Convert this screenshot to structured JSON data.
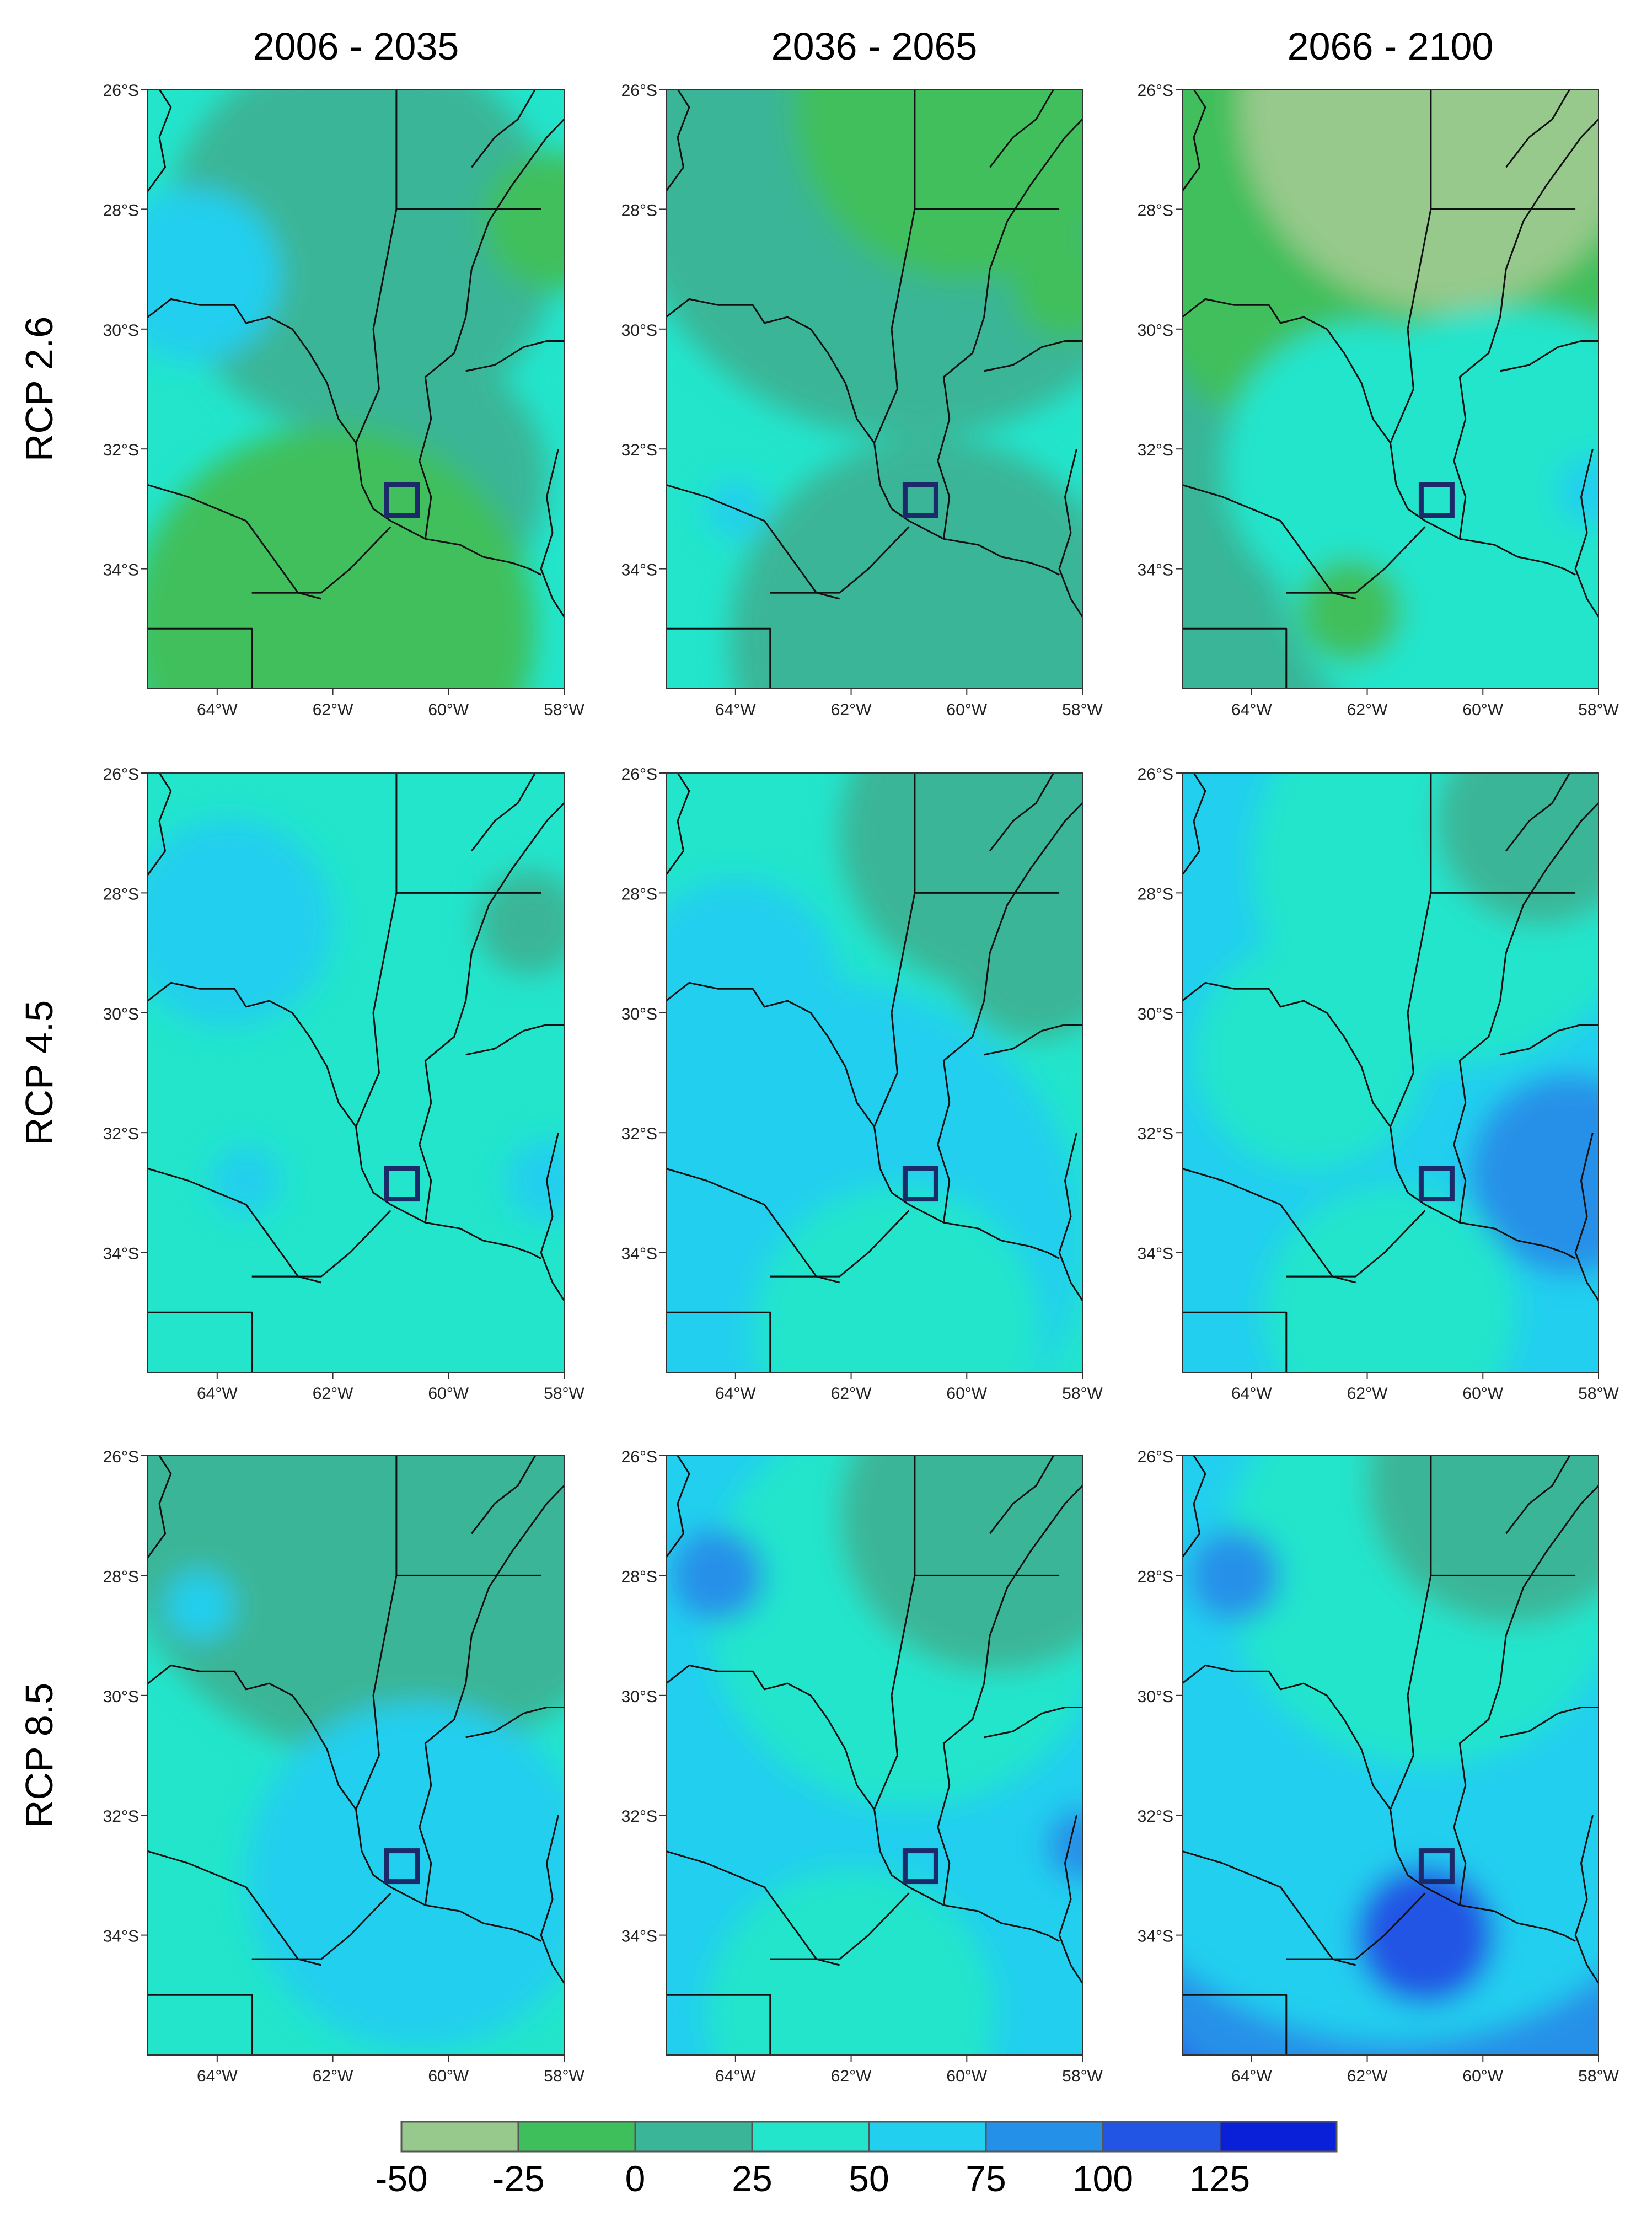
{
  "figure": {
    "column_titles": [
      "2006 - 2035",
      "2036 - 2065",
      "2066 - 2100"
    ],
    "row_titles": [
      "RCP 2.6",
      "RCP 4.5",
      "RCP 8.5"
    ],
    "lat_ticks": [
      "26°S",
      "28°S",
      "30°S",
      "32°S",
      "34°S"
    ],
    "lon_ticks": [
      "64°W",
      "62°W",
      "60°W",
      "58°W"
    ],
    "colorbar": {
      "labels": [
        "-50",
        "-25",
        "0",
        "25",
        "50",
        "75",
        "100",
        "125"
      ],
      "colors": [
        "#97c98c",
        "#3fbf5c",
        "#3ab597",
        "#22e5cc",
        "#22cfee",
        "#2590e8",
        "#2355e4",
        "#0a1fd8"
      ]
    },
    "box_color": "#1c2a6a",
    "maps": [
      {
        "row": 0,
        "col": 0,
        "base_level": 3,
        "patches": [
          {
            "level": 2,
            "lon": -61.5,
            "lat": -28.5,
            "rlon": 3.4,
            "rlat": 2.8
          },
          {
            "level": 1,
            "lon": -58.2,
            "lat": -28.2,
            "rlon": 1.2,
            "rlat": 1.8
          },
          {
            "level": 2,
            "lon": -60.5,
            "lat": -32.5,
            "rlon": 2.2,
            "rlat": 2.0
          },
          {
            "level": 4,
            "lon": -64.4,
            "lat": -29.1,
            "rlon": 1.5,
            "rlat": 0.5
          },
          {
            "level": 1,
            "lon": -62.0,
            "lat": -35.0,
            "rlon": 3.5,
            "rlat": 1.3
          }
        ]
      },
      {
        "row": 0,
        "col": 1,
        "base_level": 3,
        "patches": [
          {
            "level": 2,
            "lon": -61.0,
            "lat": -27.0,
            "rlon": 5.0,
            "rlat": 1.2
          },
          {
            "level": 1,
            "lon": -60.0,
            "lat": -26.3,
            "rlon": 3.0,
            "rlat": 0.7
          },
          {
            "level": 1,
            "lon": -58.3,
            "lat": -29.3,
            "rlon": 0.9,
            "rlat": 1.5
          },
          {
            "level": 2,
            "lon": -60.6,
            "lat": -35.2,
            "rlon": 3.5,
            "rlat": 1.3
          },
          {
            "level": 4,
            "lon": -64.0,
            "lat": -33.0,
            "rlon": 0.5,
            "rlat": 0.6
          }
        ]
      },
      {
        "row": 0,
        "col": 2,
        "base_level": 2,
        "patches": [
          {
            "level": 1,
            "lon": -61.5,
            "lat": -27.5,
            "rlon": 5.0,
            "rlat": 2.2
          },
          {
            "level": 0,
            "lon": -60.7,
            "lat": -26.3,
            "rlon": 3.5,
            "rlat": 0.8
          },
          {
            "level": 3,
            "lon": -59.6,
            "lat": -33.5,
            "rlon": 4.0,
            "rlat": 2.0
          },
          {
            "level": 3,
            "lon": -62.0,
            "lat": -32.3,
            "rlon": 2.5,
            "rlat": 0.5
          },
          {
            "level": 4,
            "lon": -58.1,
            "lat": -32.7,
            "rlon": 0.6,
            "rlat": 1.0
          },
          {
            "level": 1,
            "lon": -62.3,
            "lat": -34.7,
            "rlon": 0.9,
            "rlat": 0.6
          }
        ]
      },
      {
        "row": 1,
        "col": 0,
        "base_level": 3,
        "patches": [
          {
            "level": 4,
            "lon": -63.8,
            "lat": -28.5,
            "rlon": 1.8,
            "rlat": 2.2
          },
          {
            "level": 4,
            "lon": -63.5,
            "lat": -32.8,
            "rlon": 0.6,
            "rlat": 0.6
          },
          {
            "level": 4,
            "lon": -58.3,
            "lat": -32.8,
            "rlon": 0.7,
            "rlat": 1.3
          },
          {
            "level": 2,
            "lon": -58.6,
            "lat": -28.5,
            "rlon": 0.9,
            "rlat": 1.4
          }
        ]
      },
      {
        "row": 1,
        "col": 1,
        "base_level": 3,
        "patches": [
          {
            "level": 4,
            "lon": -62.5,
            "lat": -33.8,
            "rlon": 4.5,
            "rlat": 2.0
          },
          {
            "level": 4,
            "lon": -64.0,
            "lat": -29.5,
            "rlon": 1.8,
            "rlat": 1.3
          },
          {
            "level": 3,
            "lon": -61.2,
            "lat": -35.3,
            "rlon": 2.5,
            "rlat": 1.1
          },
          {
            "level": 2,
            "lon": -59.5,
            "lat": -27.0,
            "rlon": 2.7,
            "rlat": 1.5
          },
          {
            "level": 2,
            "lon": -58.8,
            "lat": -29.0,
            "rlon": 1.5,
            "rlat": 1.0
          }
        ]
      },
      {
        "row": 1,
        "col": 2,
        "base_level": 4,
        "patches": [
          {
            "level": 3,
            "lon": -60.5,
            "lat": -27.5,
            "rlon": 3.5,
            "rlat": 2.0
          },
          {
            "level": 3,
            "lon": -63.0,
            "lat": -30.7,
            "rlon": 2.0,
            "rlat": 0.9
          },
          {
            "level": 5,
            "lon": -58.5,
            "lat": -32.7,
            "rlon": 1.7,
            "rlat": 1.5
          },
          {
            "level": 3,
            "lon": -61.6,
            "lat": -35.0,
            "rlon": 2.2,
            "rlat": 1.0
          },
          {
            "level": 2,
            "lon": -59.0,
            "lat": -26.8,
            "rlon": 1.8,
            "rlat": 0.8
          }
        ]
      },
      {
        "row": 2,
        "col": 0,
        "base_level": 3,
        "patches": [
          {
            "level": 2,
            "lon": -61.0,
            "lat": -26.3,
            "rlon": 5.0,
            "rlat": 0.8
          },
          {
            "level": 4,
            "lon": -60.5,
            "lat": -33.0,
            "rlon": 3.0,
            "rlat": 1.4
          },
          {
            "level": 4,
            "lon": -64.3,
            "lat": -28.5,
            "rlon": 0.6,
            "rlat": 0.8
          }
        ]
      },
      {
        "row": 2,
        "col": 1,
        "base_level": 4,
        "patches": [
          {
            "level": 3,
            "lon": -61.0,
            "lat": -28.5,
            "rlon": 3.5,
            "rlat": 2.2
          },
          {
            "level": 3,
            "lon": -62.0,
            "lat": -35.3,
            "rlon": 2.5,
            "rlat": 1.0
          },
          {
            "level": 2,
            "lon": -59.5,
            "lat": -27.0,
            "rlon": 2.7,
            "rlat": 1.0
          },
          {
            "level": 5,
            "lon": -64.3,
            "lat": -28.0,
            "rlon": 0.8,
            "rlat": 1.5
          },
          {
            "level": 5,
            "lon": -58.0,
            "lat": -32.5,
            "rlon": 0.6,
            "rlat": 0.8
          }
        ]
      },
      {
        "row": 2,
        "col": 2,
        "base_level": 7,
        "patches": [
          {
            "level": 6,
            "lon": -61.0,
            "lat": -32.8,
            "rlon": 6.0,
            "rlat": 0.9
          },
          {
            "level": 5,
            "lon": -61.0,
            "lat": -31.8,
            "rlon": 6.0,
            "rlat": 0.7
          },
          {
            "level": 4,
            "lon": -61.5,
            "lat": -30.0,
            "rlon": 6.0,
            "rlat": 1.8
          },
          {
            "level": 3,
            "lon": -61.0,
            "lat": -27.8,
            "rlon": 3.5,
            "rlat": 1.3
          },
          {
            "level": 2,
            "lon": -59.5,
            "lat": -26.4,
            "rlon": 2.5,
            "rlat": 0.5
          },
          {
            "level": 5,
            "lon": -64.3,
            "lat": -28.0,
            "rlon": 0.8,
            "rlat": 1.3
          },
          {
            "level": 6,
            "lon": -61.0,
            "lat": -34.0,
            "rlon": 1.2,
            "rlat": 0.7
          }
        ]
      }
    ]
  }
}
